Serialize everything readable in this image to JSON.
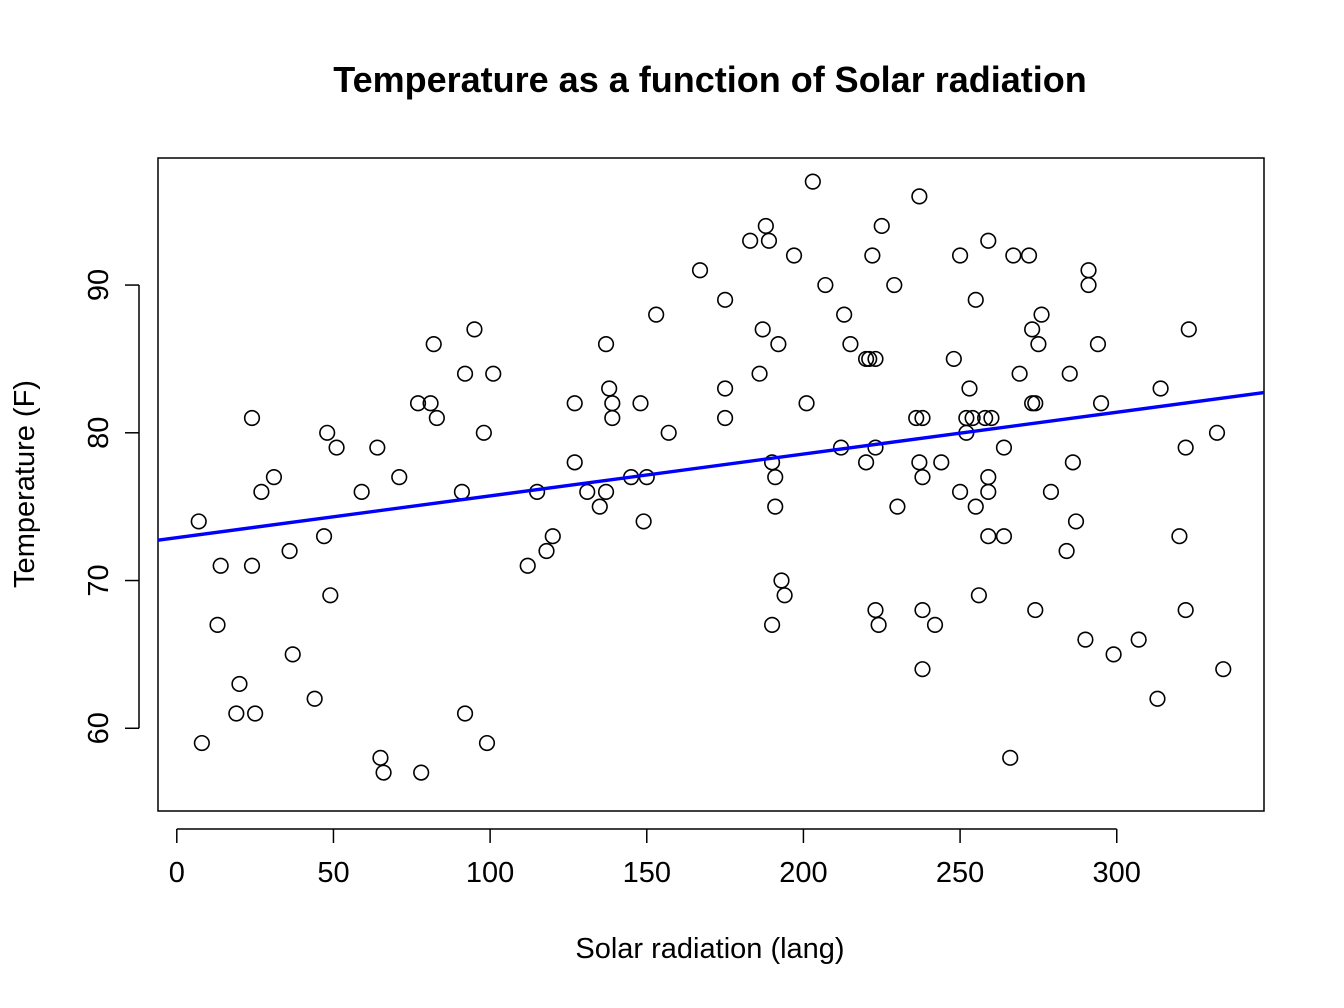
{
  "chart_data": {
    "type": "scatter",
    "title": "Temperature as a function of Solar radiation",
    "xlabel": "Solar radiation (lang)",
    "ylabel": "Temperature (F)",
    "xlim": [
      -6,
      347
    ],
    "ylim": [
      54.4,
      98.6
    ],
    "xticks": [
      0,
      50,
      100,
      150,
      200,
      250,
      300
    ],
    "yticks": [
      60,
      70,
      80,
      90
    ],
    "grid": false,
    "legend": "none",
    "point_color": "#000000",
    "line_color": "#0000ff",
    "regression_line": {
      "intercept": 72.9,
      "slope": 0.0283
    },
    "points": [
      [
        7,
        74
      ],
      [
        8,
        59
      ],
      [
        13,
        67
      ],
      [
        14,
        71
      ],
      [
        19,
        61
      ],
      [
        20,
        63
      ],
      [
        24,
        71
      ],
      [
        24,
        81
      ],
      [
        25,
        61
      ],
      [
        27,
        76
      ],
      [
        31,
        77
      ],
      [
        36,
        72
      ],
      [
        37,
        65
      ],
      [
        44,
        62
      ],
      [
        47,
        73
      ],
      [
        48,
        80
      ],
      [
        49,
        69
      ],
      [
        51,
        79
      ],
      [
        59,
        76
      ],
      [
        64,
        79
      ],
      [
        65,
        58
      ],
      [
        66,
        57
      ],
      [
        71,
        77
      ],
      [
        77,
        82
      ],
      [
        78,
        57
      ],
      [
        81,
        82
      ],
      [
        82,
        86
      ],
      [
        83,
        81
      ],
      [
        91,
        76
      ],
      [
        92,
        84
      ],
      [
        92,
        61
      ],
      [
        95,
        87
      ],
      [
        98,
        80
      ],
      [
        99,
        59
      ],
      [
        101,
        84
      ],
      [
        112,
        71
      ],
      [
        115,
        76
      ],
      [
        118,
        72
      ],
      [
        120,
        73
      ],
      [
        127,
        82
      ],
      [
        127,
        78
      ],
      [
        131,
        76
      ],
      [
        135,
        75
      ],
      [
        137,
        86
      ],
      [
        137,
        76
      ],
      [
        138,
        83
      ],
      [
        139,
        82
      ],
      [
        139,
        81
      ],
      [
        145,
        77
      ],
      [
        148,
        82
      ],
      [
        149,
        74
      ],
      [
        150,
        77
      ],
      [
        153,
        88
      ],
      [
        157,
        80
      ],
      [
        167,
        91
      ],
      [
        175,
        89
      ],
      [
        175,
        83
      ],
      [
        175,
        81
      ],
      [
        183,
        93
      ],
      [
        186,
        84
      ],
      [
        187,
        87
      ],
      [
        188,
        94
      ],
      [
        189,
        93
      ],
      [
        190,
        78
      ],
      [
        190,
        67
      ],
      [
        191,
        77
      ],
      [
        191,
        75
      ],
      [
        192,
        86
      ],
      [
        193,
        70
      ],
      [
        194,
        69
      ],
      [
        197,
        92
      ],
      [
        201,
        82
      ],
      [
        203,
        97
      ],
      [
        207,
        90
      ],
      [
        212,
        79
      ],
      [
        213,
        88
      ],
      [
        215,
        86
      ],
      [
        220,
        85
      ],
      [
        220,
        78
      ],
      [
        221,
        85
      ],
      [
        222,
        92
      ],
      [
        223,
        85
      ],
      [
        223,
        79
      ],
      [
        223,
        68
      ],
      [
        224,
        67
      ],
      [
        225,
        94
      ],
      [
        229,
        90
      ],
      [
        230,
        75
      ],
      [
        236,
        81
      ],
      [
        237,
        96
      ],
      [
        237,
        78
      ],
      [
        238,
        81
      ],
      [
        238,
        77
      ],
      [
        238,
        68
      ],
      [
        238,
        64
      ],
      [
        242,
        67
      ],
      [
        244,
        78
      ],
      [
        248,
        85
      ],
      [
        250,
        92
      ],
      [
        250,
        76
      ],
      [
        252,
        81
      ],
      [
        252,
        80
      ],
      [
        253,
        83
      ],
      [
        254,
        81
      ],
      [
        255,
        89
      ],
      [
        255,
        75
      ],
      [
        256,
        69
      ],
      [
        258,
        81
      ],
      [
        259,
        93
      ],
      [
        259,
        77
      ],
      [
        259,
        76
      ],
      [
        259,
        73
      ],
      [
        260,
        81
      ],
      [
        264,
        79
      ],
      [
        264,
        73
      ],
      [
        266,
        58
      ],
      [
        267,
        92
      ],
      [
        269,
        84
      ],
      [
        272,
        92
      ],
      [
        273,
        87
      ],
      [
        273,
        82
      ],
      [
        274,
        82
      ],
      [
        274,
        68
      ],
      [
        275,
        86
      ],
      [
        276,
        88
      ],
      [
        279,
        76
      ],
      [
        284,
        72
      ],
      [
        285,
        84
      ],
      [
        286,
        78
      ],
      [
        287,
        74
      ],
      [
        290,
        66
      ],
      [
        291,
        91
      ],
      [
        291,
        90
      ],
      [
        294,
        86
      ],
      [
        295,
        82
      ],
      [
        299,
        65
      ],
      [
        307,
        66
      ],
      [
        313,
        62
      ],
      [
        314,
        83
      ],
      [
        320,
        73
      ],
      [
        322,
        79
      ],
      [
        322,
        68
      ],
      [
        323,
        87
      ],
      [
        332,
        80
      ],
      [
        334,
        64
      ]
    ]
  }
}
